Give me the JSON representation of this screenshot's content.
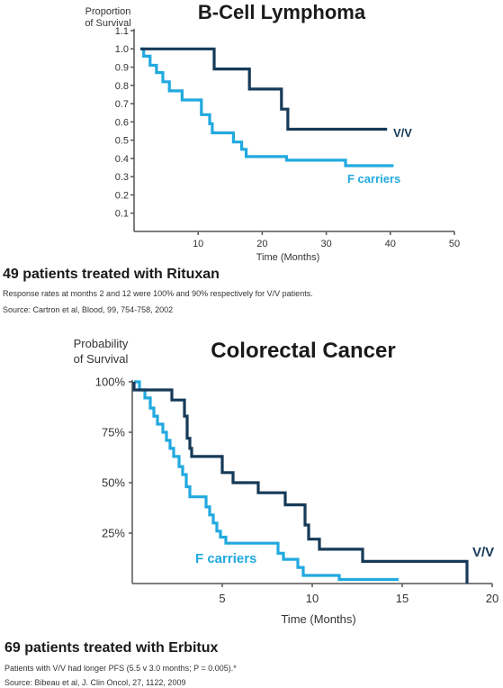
{
  "colors": {
    "vv": "#163a58",
    "f": "#22a9df",
    "axis": "#555555"
  },
  "chart_data": [
    {
      "type": "line",
      "title": "B-Cell Lymphoma",
      "ylabel": [
        "Proportion",
        "of Survival"
      ],
      "xlabel": "Time (Months)",
      "xlim": [
        0,
        50
      ],
      "ylim": [
        0,
        1.1
      ],
      "xticks": [
        10,
        20,
        30,
        40,
        50
      ],
      "yticks": [
        0.1,
        0.2,
        0.3,
        0.4,
        0.5,
        0.6,
        0.7,
        0.8,
        0.9,
        1.0,
        1.1
      ],
      "yticklabels": [
        "0.1",
        "0.2",
        "0.3",
        "0.4",
        "0.5",
        "0.6",
        "0.7",
        "0.8",
        "0.9",
        "1.0",
        "1.1"
      ],
      "series": [
        {
          "name": "V/V",
          "color": "#163a58",
          "x": [
            1,
            12.5,
            12.5,
            18,
            18,
            23,
            23,
            24,
            24,
            24.8,
            24.8,
            39.5
          ],
          "y": [
            1.0,
            1.0,
            0.89,
            0.89,
            0.78,
            0.78,
            0.67,
            0.67,
            0.56,
            0.56,
            0.56,
            0.56
          ]
        },
        {
          "name": "F carriers",
          "color": "#22a9df",
          "x": [
            1,
            1.5,
            1.5,
            2.5,
            2.5,
            3.5,
            3.5,
            4.5,
            4.5,
            5.5,
            5.5,
            7.5,
            7.5,
            10.5,
            10.5,
            11.8,
            11.8,
            12.2,
            12.2,
            12.8,
            12.8,
            15.5,
            15.5,
            16.8,
            16.8,
            17.5,
            17.5,
            18.3,
            18.3,
            23.8,
            23.8,
            33,
            33,
            40.5
          ],
          "y": [
            1.0,
            1.0,
            0.96,
            0.96,
            0.91,
            0.91,
            0.87,
            0.87,
            0.82,
            0.82,
            0.77,
            0.77,
            0.72,
            0.72,
            0.64,
            0.64,
            0.59,
            0.59,
            0.54,
            0.54,
            0.54,
            0.54,
            0.49,
            0.49,
            0.45,
            0.45,
            0.41,
            0.41,
            0.41,
            0.41,
            0.39,
            0.39,
            0.36,
            0.36
          ]
        }
      ]
    },
    {
      "type": "line",
      "title": "Colorectal Cancer",
      "ylabel": [
        "Probability",
        "of Survival"
      ],
      "xlabel": "Time (Months)",
      "xlim": [
        0,
        20
      ],
      "ylim": [
        0,
        100
      ],
      "xticks": [
        5,
        10,
        15,
        20
      ],
      "yticks": [
        25,
        50,
        75,
        100
      ],
      "yticklabels": [
        "25%",
        "50%",
        "75%",
        "100%"
      ],
      "series": [
        {
          "name": "V/V",
          "color": "#163a58",
          "x": [
            0.1,
            0.1,
            2.2,
            2.2,
            2.9,
            2.9,
            3.05,
            3.05,
            3.2,
            3.2,
            3.3,
            3.3,
            5,
            5,
            5.6,
            5.6,
            7,
            7,
            8.5,
            8.5,
            9.6,
            9.6,
            9.8,
            9.8,
            10.4,
            10.4,
            12.8,
            12.8,
            18.6,
            18.6
          ],
          "y": [
            100,
            96,
            96,
            91,
            91,
            83,
            83,
            72,
            72,
            67,
            67,
            63,
            63,
            55,
            55,
            50,
            50,
            45,
            45,
            39,
            39,
            29,
            29,
            22,
            22,
            17,
            17,
            11,
            11,
            0
          ]
        },
        {
          "name": "F carriers",
          "color": "#22a9df",
          "x": [
            0.1,
            0.4,
            0.4,
            0.7,
            0.7,
            1.0,
            1.0,
            1.2,
            1.2,
            1.4,
            1.4,
            1.7,
            1.7,
            1.9,
            1.9,
            2.1,
            2.1,
            2.3,
            2.3,
            2.6,
            2.6,
            2.8,
            2.8,
            3.0,
            3.0,
            3.2,
            3.2,
            3.4,
            3.4,
            4.1,
            4.1,
            4.3,
            4.3,
            4.5,
            4.5,
            4.7,
            4.7,
            4.9,
            4.9,
            5.2,
            5.2,
            5.6,
            5.6,
            8.1,
            8.1,
            8.4,
            8.4,
            9.2,
            9.2,
            9.5,
            9.5,
            11.5,
            11.5,
            14.8
          ],
          "y": [
            100,
            100,
            96,
            96,
            92,
            92,
            87,
            87,
            83,
            83,
            79,
            79,
            75,
            75,
            71,
            71,
            67,
            67,
            63,
            63,
            58,
            58,
            54,
            54,
            48,
            48,
            43,
            43,
            43,
            43,
            38,
            38,
            34,
            34,
            30,
            30,
            26,
            26,
            23,
            23,
            20,
            20,
            20,
            20,
            15,
            15,
            12,
            12,
            8,
            8,
            4,
            4,
            2,
            2
          ]
        }
      ]
    }
  ],
  "lymphoma_note": {
    "heading": "49 patients treated with Rituxan",
    "text": "Response rates at months 2 and 12 were 100% and 90% respectively for V/V patients.",
    "source": "Source:  Cartron et al, Blood, 99, 754-758, 2002"
  },
  "colorectal_note": {
    "heading": "69 patients treated with Erbitux",
    "text": "Patients with V/V had longer PFS (5.5 v 3.0 months; P  = 0.005).*",
    "source": "Source:  Bibeau et al, J. Clin Oncol, 27, 1122, 2009"
  }
}
